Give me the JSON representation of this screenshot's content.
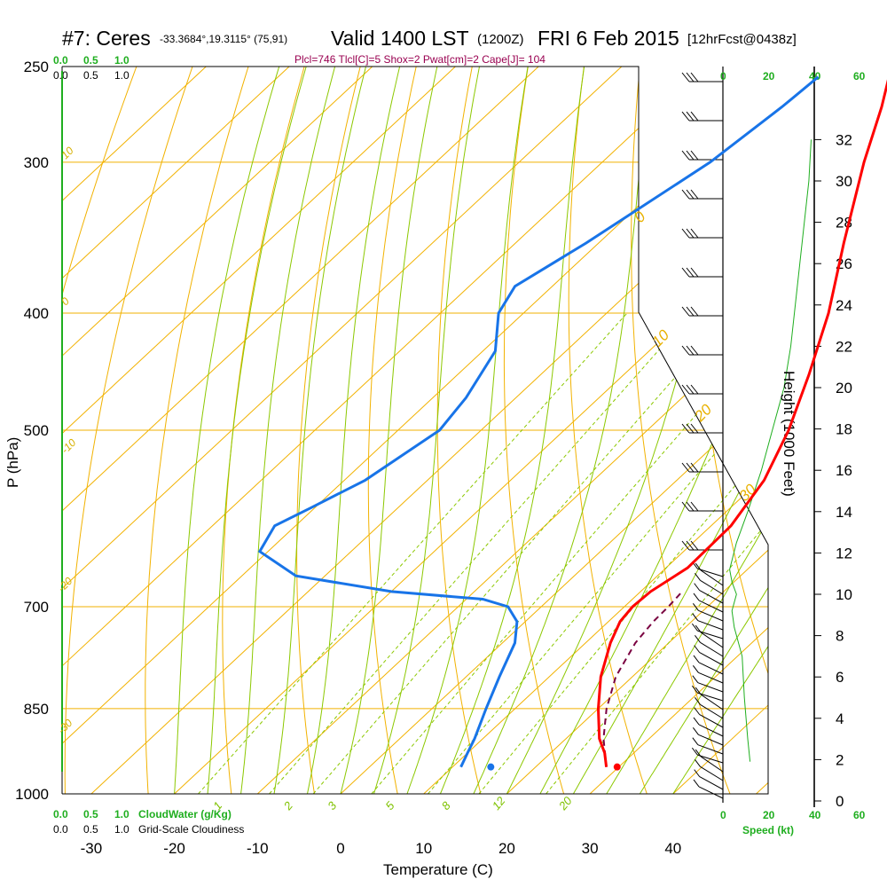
{
  "header": {
    "station": "#7: Ceres",
    "coords": "-33.3684°,19.3115° (75,91)",
    "valid": "Valid 1400 LST",
    "zulu": "(1200Z)",
    "date": "FRI 6 Feb 2015",
    "forecast": "[12hrFcst@0438z]",
    "indices": "Plcl=746 Tlcl[C]=5 Shox=2 Pwat[cm]=2 Cape[J]= 104"
  },
  "axes": {
    "xlabel": "Temperature (C)",
    "ylabel": "P (hPa)",
    "height_label": "Height (1000 Feet)",
    "speed_label": "Speed (kt)",
    "cloudwater_label": "CloudWater (g/Kg)",
    "cloudiness_label": "Grid-Scale Cloudiness"
  },
  "scale_labels": {
    "cloud_top_green": [
      "0.0",
      "0.5",
      "1.0"
    ],
    "cloud_top_black": [
      "0.0",
      "0.5",
      "1.0"
    ],
    "cloud_bottom_green": [
      "0.0",
      "0.5",
      "1.0"
    ],
    "cloud_bottom_black": [
      "0.0",
      "0.5",
      "1.0"
    ],
    "speed_top": [
      "0",
      "20",
      "40",
      "60"
    ],
    "speed_bottom": [
      "0",
      "20",
      "40",
      "60"
    ]
  },
  "colors": {
    "temperature": "#ff0000",
    "dewpoint": "#1874e8",
    "parcel": "#7a0040",
    "isotherm": "#f2b200",
    "dry_adiabat": "#f2b200",
    "moist_adiabat": "#8cc800",
    "mixing_ratio": "#8cc800",
    "wind_speed": "#1fae1f",
    "title_index": "#990050"
  },
  "chart_data": {
    "type": "skew-t",
    "pressure_ticks": [
      250,
      300,
      400,
      500,
      700,
      850,
      1000
    ],
    "temperature_ticks": [
      -30,
      -20,
      -10,
      0,
      10,
      20,
      30,
      40
    ],
    "height_ticks": [
      0,
      2,
      4,
      6,
      8,
      10,
      12,
      14,
      16,
      18,
      20,
      22,
      24,
      26,
      28,
      30,
      32
    ],
    "isotherm_labels": [
      {
        "label": "10",
        "temp": 10
      },
      {
        "label": "0",
        "temp": 0
      },
      {
        "label": "-10",
        "temp": -10
      },
      {
        "label": "-20",
        "temp": -20
      },
      {
        "label": "-30",
        "temp": -30
      },
      {
        "label": "0",
        "temp": 0
      },
      {
        "label": "10",
        "temp": 10
      },
      {
        "label": "20",
        "temp": 20
      },
      {
        "label": "30",
        "temp": 30
      }
    ],
    "isotherm_label_texts": [
      "10",
      "0",
      "-10",
      "-20",
      "-30",
      "0",
      "10",
      "20",
      "30"
    ],
    "mixing_ratio_labels": [
      "1",
      "2",
      "3",
      "5",
      "8",
      "12",
      "20"
    ],
    "mixing_ratio_values": [
      1,
      2,
      3,
      5,
      8,
      12,
      20
    ],
    "temperature_profile": [
      {
        "p": 950,
        "t": 28.5
      },
      {
        "p": 925,
        "t": 26.5
      },
      {
        "p": 900,
        "t": 24.0
      },
      {
        "p": 850,
        "t": 20.0
      },
      {
        "p": 800,
        "t": 16.2
      },
      {
        "p": 750,
        "t": 13.0
      },
      {
        "p": 720,
        "t": 11.4
      },
      {
        "p": 700,
        "t": 11.0
      },
      {
        "p": 680,
        "t": 11.2
      },
      {
        "p": 650,
        "t": 12.6
      },
      {
        "p": 600,
        "t": 12.4
      },
      {
        "p": 550,
        "t": 10.5
      },
      {
        "p": 500,
        "t": 7.0
      },
      {
        "p": 450,
        "t": 2.3
      },
      {
        "p": 400,
        "t": -3.3
      },
      {
        "p": 350,
        "t": -10.5
      },
      {
        "p": 300,
        "t": -18.5
      },
      {
        "p": 270,
        "t": -23.5
      },
      {
        "p": 255,
        "t": -26.5
      }
    ],
    "dewpoint_profile": [
      {
        "p": 950,
        "t": 11.0
      },
      {
        "p": 925,
        "t": 10.0
      },
      {
        "p": 900,
        "t": 9.0
      },
      {
        "p": 850,
        "t": 6.5
      },
      {
        "p": 800,
        "t": 4.0
      },
      {
        "p": 750,
        "t": 1.5
      },
      {
        "p": 720,
        "t": -1.0
      },
      {
        "p": 700,
        "t": -4.0
      },
      {
        "p": 690,
        "t": -8.0
      },
      {
        "p": 680,
        "t": -20.0
      },
      {
        "p": 660,
        "t": -33.5
      },
      {
        "p": 630,
        "t": -41.0
      },
      {
        "p": 600,
        "t": -42.5
      },
      {
        "p": 580,
        "t": -40.5
      },
      {
        "p": 550,
        "t": -37.5
      },
      {
        "p": 500,
        "t": -35.0
      },
      {
        "p": 470,
        "t": -36.0
      },
      {
        "p": 430,
        "t": -38.5
      },
      {
        "p": 400,
        "t": -43.0
      },
      {
        "p": 380,
        "t": -44.5
      },
      {
        "p": 350,
        "t": -41.5
      },
      {
        "p": 300,
        "t": -37.0
      },
      {
        "p": 270,
        "t": -35.5
      },
      {
        "p": 255,
        "t": -35.0
      }
    ],
    "parcel_profile": [
      {
        "p": 950,
        "t": 28.5
      },
      {
        "p": 900,
        "t": 24.5
      },
      {
        "p": 850,
        "t": 21.0
      },
      {
        "p": 800,
        "t": 18.0
      },
      {
        "p": 750,
        "t": 16.0
      },
      {
        "p": 720,
        "t": 15.4
      },
      {
        "p": 700,
        "t": 15.3
      },
      {
        "p": 680,
        "t": 15.0
      }
    ],
    "surface_temperature": {
      "p": 950,
      "t": 29.8
    },
    "surface_dewpoint": {
      "p": 950,
      "t": 14.6
    },
    "wind_speed_profile": [
      {
        "h": 1.9,
        "s": 12
      },
      {
        "h": 3,
        "s": 11
      },
      {
        "h": 5,
        "s": 9.5
      },
      {
        "h": 7,
        "s": 8.5
      },
      {
        "h": 8.4,
        "s": 5
      },
      {
        "h": 9.2,
        "s": 4
      },
      {
        "h": 10.0,
        "s": 6
      },
      {
        "h": 10.6,
        "s": 4
      },
      {
        "h": 11.2,
        "s": 3
      },
      {
        "h": 12.5,
        "s": 6
      },
      {
        "h": 14,
        "s": 11
      },
      {
        "h": 16,
        "s": 17
      },
      {
        "h": 18,
        "s": 22
      },
      {
        "h": 20,
        "s": 27
      },
      {
        "h": 22,
        "s": 30
      },
      {
        "h": 24,
        "s": 32
      },
      {
        "h": 26,
        "s": 34
      },
      {
        "h": 28,
        "s": 36
      },
      {
        "h": 30,
        "s": 38
      },
      {
        "h": 32,
        "s": 39
      }
    ]
  }
}
